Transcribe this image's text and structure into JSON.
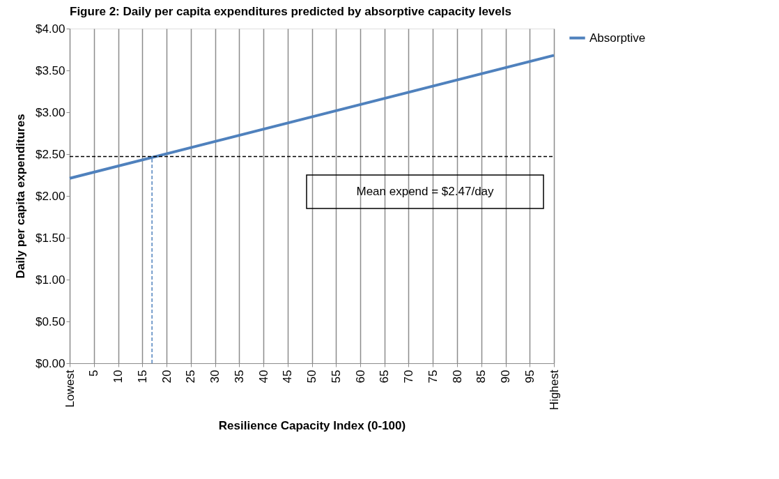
{
  "chart_data": {
    "type": "line",
    "title": "Figure 2: Daily per capita expenditures predicted by absorptive capacity levels",
    "xlabel": "Resilience Capacity Index (0-100)",
    "ylabel": "Daily per capita expenditures",
    "x": [
      0,
      100
    ],
    "series": [
      {
        "name": "Absorptive",
        "color": "#4f81bd",
        "values": [
          2.21,
          3.68
        ]
      }
    ],
    "xlim": [
      0,
      100
    ],
    "xticks": [
      {
        "value": 0,
        "label": "Lowest"
      },
      5,
      10,
      15,
      20,
      25,
      30,
      35,
      40,
      45,
      50,
      55,
      60,
      65,
      70,
      75,
      80,
      85,
      90,
      95,
      {
        "value": 100,
        "label": "Highest"
      }
    ],
    "ylim": [
      0,
      4
    ],
    "yticks": [
      {
        "value": 0,
        "label": "$0.00"
      },
      {
        "value": 0.5,
        "label": "$0.50"
      },
      {
        "value": 1,
        "label": "$1.00"
      },
      {
        "value": 1.5,
        "label": "$1.50"
      },
      {
        "value": 2,
        "label": "$2.00"
      },
      {
        "value": 2.5,
        "label": "$2.50"
      },
      {
        "value": 3,
        "label": "$3.00"
      },
      {
        "value": 3.5,
        "label": "$3.50"
      },
      {
        "value": 4,
        "label": "$4.00"
      }
    ],
    "ref_lines": [
      {
        "axis": "y",
        "value": 2.47,
        "color": "#000000",
        "line_style": "dashed"
      },
      {
        "axis": "x",
        "value": 17,
        "color": "#4f81bd",
        "line_style": "dashed"
      }
    ],
    "annotations": [
      "Mean expend = $2.47/day"
    ],
    "grid": "x",
    "legend": "right",
    "marker": "none",
    "line_style": "solid"
  }
}
